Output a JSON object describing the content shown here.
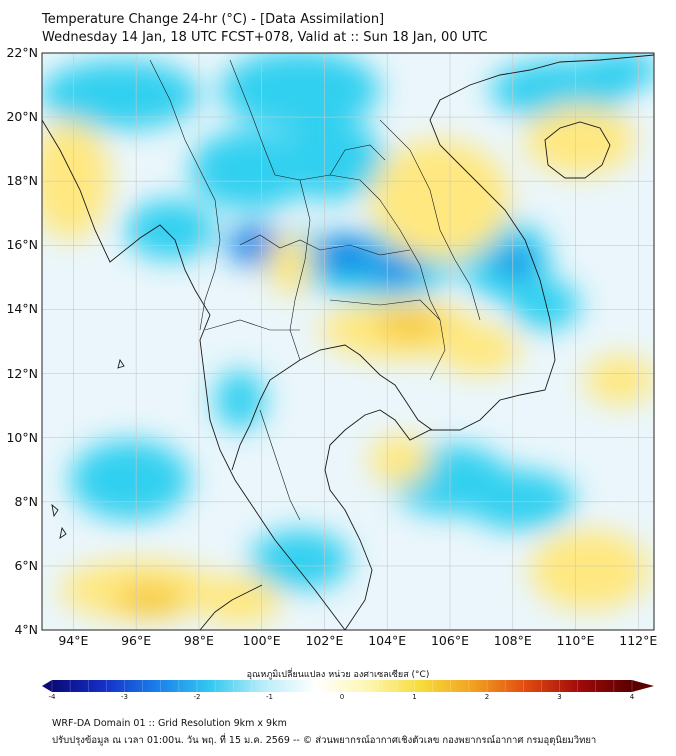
{
  "title": {
    "line1": "Temperature Change 24-hr (°C) - [Data Assimilation]",
    "line2": "Wednesday 14 Jan, 18 UTC FCST+078, Valid at :: Sun 18 Jan, 00 UTC"
  },
  "map": {
    "lat_labels": [
      "22°N",
      "20°N",
      "18°N",
      "16°N",
      "14°N",
      "12°N",
      "10°N",
      "8°N",
      "6°N",
      "4°N"
    ],
    "lon_labels": [
      "94°E",
      "96°E",
      "98°E",
      "100°E",
      "102°E",
      "104°E",
      "106°E",
      "108°E",
      "110°E",
      "112°E"
    ],
    "lat_range": [
      4,
      22
    ],
    "lon_range": [
      93,
      112.5
    ],
    "gridlines": true,
    "field_colors": {
      "neutral": "#eaf6fb",
      "cool": "#33d0f0",
      "cold": "#1686e6",
      "warm": "#ffe880",
      "hot": "#f6c830",
      "coast": "#1a1a1a"
    }
  },
  "colorbar": {
    "title": "อุณหภูมิเปลี่ยนแปลง หน่วย องศาเซลเซียส (°C)",
    "ticks": [
      "-4",
      "-3",
      "-2",
      "-1",
      "0",
      "1",
      "2",
      "3",
      "4"
    ],
    "min": -4,
    "max": 4,
    "stops": [
      "#0a0a78",
      "#1530c8",
      "#1b80ea",
      "#33c8f0",
      "#b8ecf8",
      "#ffffff",
      "#fdf6b0",
      "#f6dc3a",
      "#f2a020",
      "#e04a10",
      "#a00a0a",
      "#5a0000"
    ]
  },
  "footer": {
    "line1": "WRF-DA Domain 01 :: Grid Resolution 9km x 9km",
    "line2": "ปรับปรุงข้อมูล ณ เวลา 01:00น. วัน พฤ. ที่ 15 ม.ค. 2569 -- © ส่วนพยากรณ์อากาศเชิงตัวเลข กองพยากรณ์อากาศ กรมอุตุนิยมวิทยา"
  }
}
